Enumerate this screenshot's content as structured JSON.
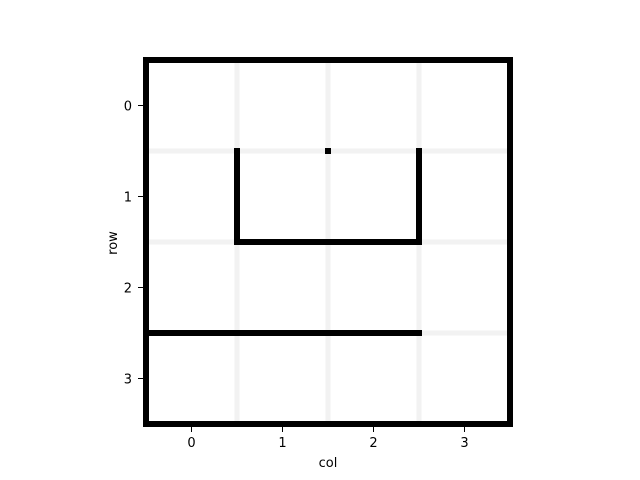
{
  "chart_data": {
    "type": "grid-maze",
    "rows": 4,
    "cols": 4,
    "xlabel": "col",
    "ylabel": "row",
    "x_ticks": [
      "0",
      "1",
      "2",
      "3"
    ],
    "y_ticks": [
      "0",
      "1",
      "2",
      "3"
    ],
    "walls": [
      {
        "from": [
          -0.5,
          -0.5
        ],
        "to": [
          3.5,
          -0.5
        ]
      },
      {
        "from": [
          -0.5,
          3.5
        ],
        "to": [
          3.5,
          3.5
        ]
      },
      {
        "from": [
          -0.5,
          -0.5
        ],
        "to": [
          -0.5,
          3.5
        ]
      },
      {
        "from": [
          3.5,
          -0.5
        ],
        "to": [
          3.5,
          3.5
        ]
      },
      {
        "from": [
          0.5,
          0.5
        ],
        "to": [
          0.5,
          1.5
        ]
      },
      {
        "from": [
          2.5,
          0.5
        ],
        "to": [
          2.5,
          1.5
        ]
      },
      {
        "from": [
          0.5,
          1.5
        ],
        "to": [
          2.5,
          1.5
        ]
      },
      {
        "from": [
          -0.5,
          2.5
        ],
        "to": [
          2.5,
          2.5
        ]
      }
    ],
    "markers": [
      {
        "col": 1.5,
        "row": 0.5
      }
    ],
    "colors": {
      "wall": "#000000",
      "grid": "#f2f2f2",
      "background": "#ffffff"
    }
  }
}
